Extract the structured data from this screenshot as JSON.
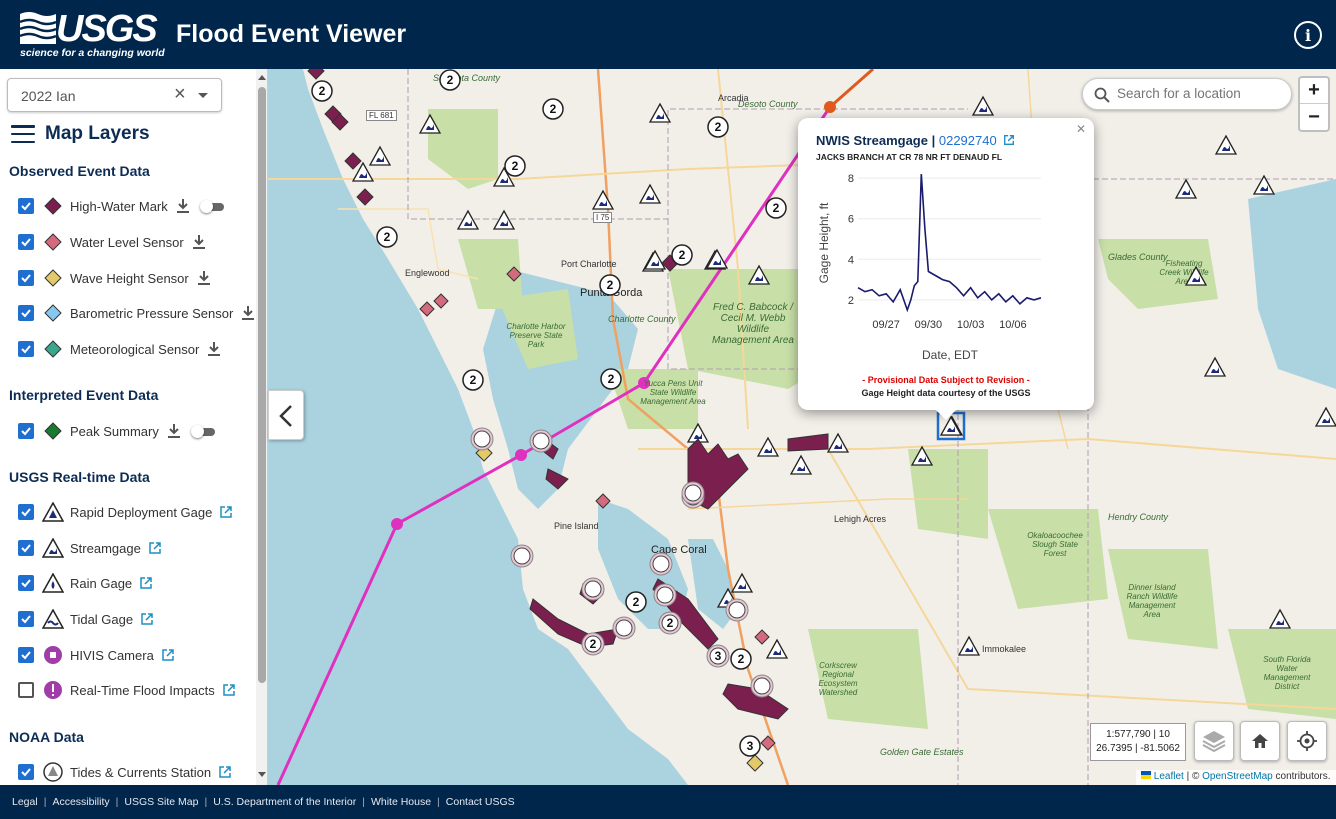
{
  "header": {
    "logo_wordmark": "USGS",
    "logo_tagline": "science for a changing world",
    "title": "Flood Event Viewer"
  },
  "sidebar": {
    "event_select": {
      "value": "2022 Ian"
    },
    "layers_title": "Map Layers",
    "sections": {
      "observed": "Observed Event Data",
      "interpreted": "Interpreted Event Data",
      "realtime": "USGS Real-time Data",
      "noaa": "NOAA Data"
    },
    "observed_items": [
      "High-Water Mark",
      "Water Level Sensor",
      "Wave Height Sensor",
      "Barometric Pressure Sensor",
      "Meteorological Sensor"
    ],
    "interpreted_items": [
      "Peak Summary"
    ],
    "realtime_items": [
      "Rapid Deployment Gage",
      "Streamgage",
      "Rain Gage",
      "Tidal Gage",
      "HIVIS Camera",
      "Real-Time Flood Impacts"
    ],
    "noaa_items": [
      "Tides & Currents Station"
    ]
  },
  "map": {
    "search_placeholder": "Search for a location",
    "zoom_in": "+",
    "zoom_out": "−",
    "scale_text": "1:577,790 | 10",
    "coords_text": "26.7395 | -81.5062",
    "attribution": {
      "leaflet": "Leaflet",
      "sep": "| ©",
      "osm": "OpenStreetMap",
      "tail": "contributors."
    },
    "labels": {
      "sarasota_county": "Sarasota County",
      "desoto_county": "Desoto County",
      "glades_county": "Glades County",
      "hendry_county": "Hendry County",
      "charlotte_county": "Charlotte County",
      "englewood": "Englewood",
      "port_charlotte": "Port Charlotte",
      "punta_gorda": "Punta Gorda",
      "arcadia": "Arcadia",
      "pine_island": "Pine Island",
      "cape_coral": "Cape Coral",
      "lehigh_acres": "Lehigh Acres",
      "immokalee": "Immokalee",
      "golden_gate": "Golden Gate Estates",
      "fl681": "FL 681",
      "i75": "I 75",
      "charlotte_harbor": "Charlotte Harbor Preserve State Park",
      "babcock": "Fred C. Babcock / Cecil M. Webb Wildlife Management Area",
      "yucca": "Yucca Pens Unit State Wildlife Management Area",
      "fisheating": "Fisheating Creek Wildlife Area",
      "okaloacoochee": "Okaloacoochee Slough State Forest",
      "dinner_island": "Dinner Island Ranch Wildlife Management Area",
      "corkscrew": "Corkscrew Regional Ecosystem Watershed",
      "south_florida": "South Florida Water Management District"
    }
  },
  "popup": {
    "type": "NWIS Streamgage",
    "site_id": "02292740",
    "site_name": "JACKS BRANCH AT CR 78 NR FT DENAUD FL",
    "provisional": "- Provisional Data Subject to Revision -",
    "credit": "Gage Height data courtesy of the USGS"
  },
  "chart_data": {
    "type": "line",
    "title": "",
    "xlabel": "Date, EDT",
    "ylabel": "Gage Height, ft",
    "x_ticks": [
      "09/27",
      "09/30",
      "10/03",
      "10/06"
    ],
    "y_ticks": [
      2,
      4,
      6,
      8
    ],
    "ylim": [
      1.5,
      8.5
    ],
    "series": [
      {
        "color": "#1a1a6e",
        "x": [
          "09/25",
          "09/25 12:00",
          "09/26",
          "09/26 12:00",
          "09/27",
          "09/27 12:00",
          "09/28",
          "09/28 12:00",
          "09/28 18:00",
          "09/29",
          "09/29 06:00",
          "09/29 12:00",
          "09/29 18:00",
          "09/30",
          "09/30 06:00",
          "09/30 12:00",
          "09/30 18:00",
          "10/01",
          "10/01 12:00",
          "10/02",
          "10/02 12:00",
          "10/03",
          "10/03 12:00",
          "10/04",
          "10/04 12:00",
          "10/05",
          "10/05 12:00",
          "10/06",
          "10/06 12:00",
          "10/07",
          "10/07 12:00",
          "10/08"
        ],
        "values": [
          2.6,
          2.4,
          2.5,
          2.2,
          2.3,
          1.9,
          2.5,
          1.5,
          2.0,
          2.7,
          2.9,
          8.2,
          5.5,
          3.4,
          3.3,
          3.2,
          3.1,
          3.0,
          2.9,
          2.6,
          2.2,
          2.6,
          2.1,
          2.4,
          2.0,
          2.3,
          1.9,
          2.2,
          1.8,
          2.1,
          2.0,
          2.1
        ]
      }
    ]
  },
  "footer": [
    "Legal",
    "Accessibility",
    "USGS Site Map",
    "U.S. Department of the Interior",
    "White House",
    "Contact USGS"
  ],
  "colors": {
    "header_bg": "#00264c",
    "hwm": "#7b1f4f",
    "water_level_sensor": "#d46a7e",
    "wave_height": "#e3c96a",
    "baro": "#88c8ee",
    "met": "#3aa68c",
    "peak": "#1a7a2e",
    "storm_track": "#e030c0",
    "checkbox": "#1f6fd0"
  }
}
